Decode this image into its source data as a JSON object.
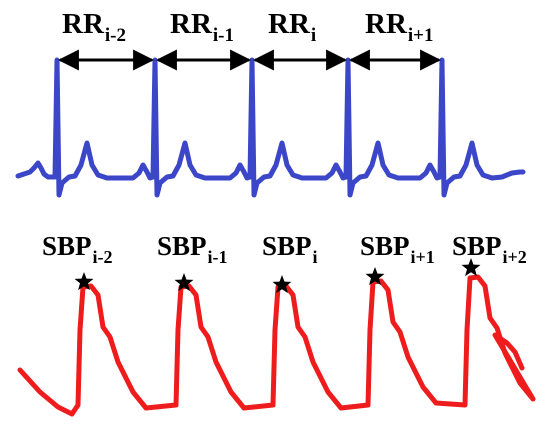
{
  "colors": {
    "ecg": "#3c46c8",
    "bp": "#ee1c1c",
    "annotation": "#000000"
  },
  "rr_intervals": [
    {
      "main": "RR",
      "sub": "i-2"
    },
    {
      "main": "RR",
      "sub": "i-1"
    },
    {
      "main": "RR",
      "sub": "i"
    },
    {
      "main": "RR",
      "sub": "i+1"
    }
  ],
  "sbp_labels": [
    {
      "main": "SBP",
      "sub": "i-2"
    },
    {
      "main": "SBP",
      "sub": "i-1"
    },
    {
      "main": "SBP",
      "sub": "i"
    },
    {
      "main": "SBP",
      "sub": "i+1"
    },
    {
      "main": "SBP",
      "sub": "i+2"
    }
  ],
  "markers": {
    "peak_marker_icon": "star-icon"
  }
}
